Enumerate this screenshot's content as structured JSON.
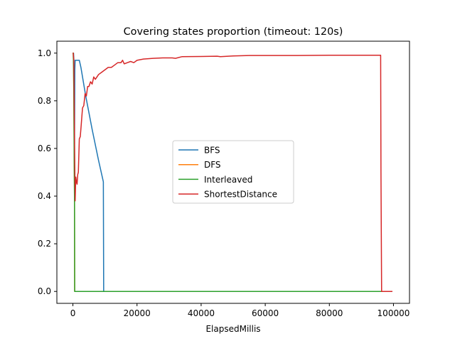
{
  "chart_data": {
    "type": "line",
    "title": "Covering states proportion (timeout: 120s)",
    "xlabel": "ElapsedMillis",
    "ylabel": "",
    "xlim": [
      -5000,
      105000
    ],
    "ylim": [
      -0.05,
      1.05
    ],
    "xticks": [
      0,
      20000,
      40000,
      60000,
      80000,
      100000
    ],
    "xtick_labels": [
      "0",
      "20000",
      "40000",
      "60000",
      "80000",
      "100000"
    ],
    "yticks": [
      0.0,
      0.2,
      0.4,
      0.6,
      0.8,
      1.0
    ],
    "ytick_labels": [
      "0.0",
      "0.2",
      "0.4",
      "0.6",
      "0.8",
      "1.0"
    ],
    "grid": false,
    "legend_placement": "center",
    "series": [
      {
        "name": "BFS",
        "color": "#1f77b4",
        "x": [
          100,
          200,
          300,
          400,
          500,
          600,
          700,
          800,
          1000,
          1200,
          1500,
          2000,
          2500,
          4000,
          6000,
          8000,
          9500,
          9600,
          9700,
          99500
        ],
        "y": [
          1.0,
          1.0,
          0.97,
          0.85,
          0.62,
          0.93,
          0.97,
          0.97,
          0.97,
          0.97,
          0.97,
          0.97,
          0.94,
          0.82,
          0.68,
          0.55,
          0.46,
          0.0,
          0.0,
          0.0
        ]
      },
      {
        "name": "DFS",
        "color": "#ff7f0e",
        "x": [
          100,
          200,
          300,
          400,
          500,
          550,
          600,
          99500
        ],
        "y": [
          1.0,
          0.95,
          0.8,
          0.6,
          0.4,
          0.0,
          0.0,
          0.0
        ]
      },
      {
        "name": "Interleaved",
        "color": "#2ca02c",
        "x": [
          100,
          200,
          300,
          400,
          500,
          550,
          600,
          99500
        ],
        "y": [
          1.0,
          0.95,
          0.8,
          0.55,
          0.38,
          0.0,
          0.0,
          0.0
        ]
      },
      {
        "name": "ShortestDistance",
        "color": "#d62728",
        "x": [
          100,
          300,
          500,
          700,
          900,
          1100,
          1300,
          1500,
          1700,
          2000,
          2300,
          2600,
          3000,
          3400,
          3800,
          4200,
          4600,
          5000,
          5500,
          6000,
          6500,
          7000,
          7500,
          8000,
          9000,
          10000,
          11000,
          12000,
          13000,
          14000,
          15000,
          15500,
          16000,
          17000,
          18000,
          19000,
          20000,
          22000,
          25000,
          28000,
          31000,
          32000,
          34000,
          40000,
          45000,
          46000,
          50000,
          55000,
          60000,
          70000,
          80000,
          90000,
          96000,
          96100,
          96300,
          99500
        ],
        "y": [
          1.0,
          0.97,
          0.65,
          0.38,
          0.48,
          0.46,
          0.45,
          0.49,
          0.5,
          0.64,
          0.65,
          0.7,
          0.77,
          0.78,
          0.83,
          0.82,
          0.86,
          0.86,
          0.88,
          0.87,
          0.9,
          0.89,
          0.9,
          0.91,
          0.92,
          0.93,
          0.94,
          0.94,
          0.95,
          0.96,
          0.96,
          0.97,
          0.955,
          0.96,
          0.965,
          0.96,
          0.97,
          0.975,
          0.978,
          0.98,
          0.98,
          0.978,
          0.985,
          0.986,
          0.987,
          0.985,
          0.988,
          0.99,
          0.99,
          0.99,
          0.991,
          0.991,
          0.991,
          0.5,
          0.0,
          0.0
        ]
      }
    ]
  }
}
